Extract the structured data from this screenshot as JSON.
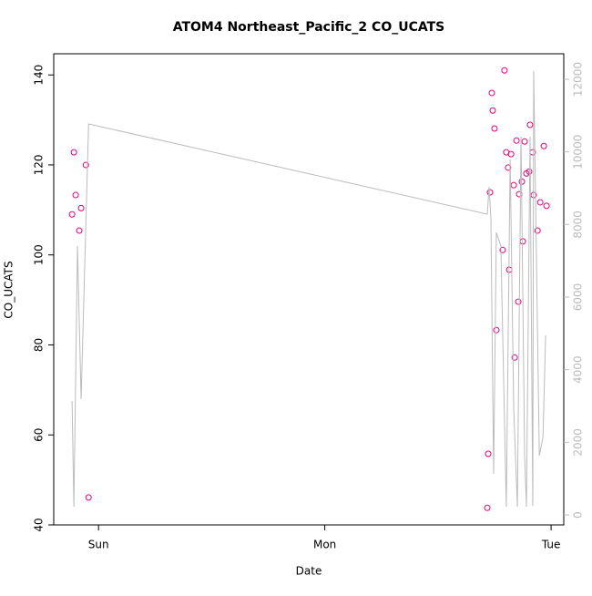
{
  "chart_data": {
    "type": "scatter",
    "title": "ATOM4 Northeast_Pacific_2 CO_UCATS",
    "xlabel": "Date",
    "ylabel": "CO_UCATS",
    "xlim": [
      -0.198,
      2.056
    ],
    "xticks": [
      {
        "value": 0,
        "label": "Sun"
      },
      {
        "value": 1,
        "label": "Mon"
      },
      {
        "value": 2,
        "label": "Tue"
      }
    ],
    "ylim": [
      40,
      144.7
    ],
    "yticks": [
      40,
      60,
      80,
      100,
      120,
      140
    ],
    "y2lim": [
      -276,
      12703
    ],
    "y2ticks": [
      0,
      2000,
      4000,
      6000,
      8000,
      10000,
      12000
    ],
    "series": [
      {
        "type": "scatter",
        "color": "#e6007e",
        "x": [
          -0.117,
          -0.109,
          -0.101,
          -0.085,
          -0.077,
          -0.056,
          -0.044,
          1.718,
          1.722,
          1.73,
          1.738,
          1.742,
          1.75,
          1.758,
          1.786,
          1.794,
          1.802,
          1.81,
          1.815,
          1.823,
          1.835,
          1.839,
          1.847,
          1.855,
          1.859,
          1.871,
          1.875,
          1.883,
          1.891,
          1.903,
          1.907,
          1.919,
          1.923,
          1.94,
          1.952,
          1.968,
          1.98
        ],
        "values": [
          109.0,
          122.8,
          113.3,
          105.4,
          110.4,
          120.0,
          46.1,
          43.8,
          55.8,
          113.9,
          136.0,
          132.1,
          128.1,
          83.3,
          101.1,
          141.0,
          122.8,
          119.4,
          96.7,
          122.4,
          115.5,
          77.2,
          125.4,
          89.6,
          113.5,
          116.3,
          103.0,
          125.2,
          118.1,
          118.5,
          128.9,
          122.8,
          113.3,
          105.4,
          111.7,
          124.2,
          110.9
        ]
      },
      {
        "type": "line",
        "axis": "y2",
        "color": "#bbbbbb",
        "x": [
          -0.117,
          -0.109,
          -0.093,
          -0.077,
          -0.044,
          1.718,
          1.726,
          1.734,
          1.746,
          1.758,
          1.778,
          1.802,
          1.819,
          1.835,
          1.851,
          1.867,
          1.883,
          1.891,
          1.907,
          1.919,
          1.923,
          1.948,
          1.964,
          1.976
        ],
        "values": [
          3138,
          226,
          7406,
          3188,
          10771,
          8285,
          9038,
          8160,
          1130,
          7783,
          7406,
          226,
          9791,
          2887,
          226,
          10419,
          1632,
          226,
          10419,
          251,
          12227,
          1632,
          2134,
          4946
        ]
      }
    ]
  }
}
